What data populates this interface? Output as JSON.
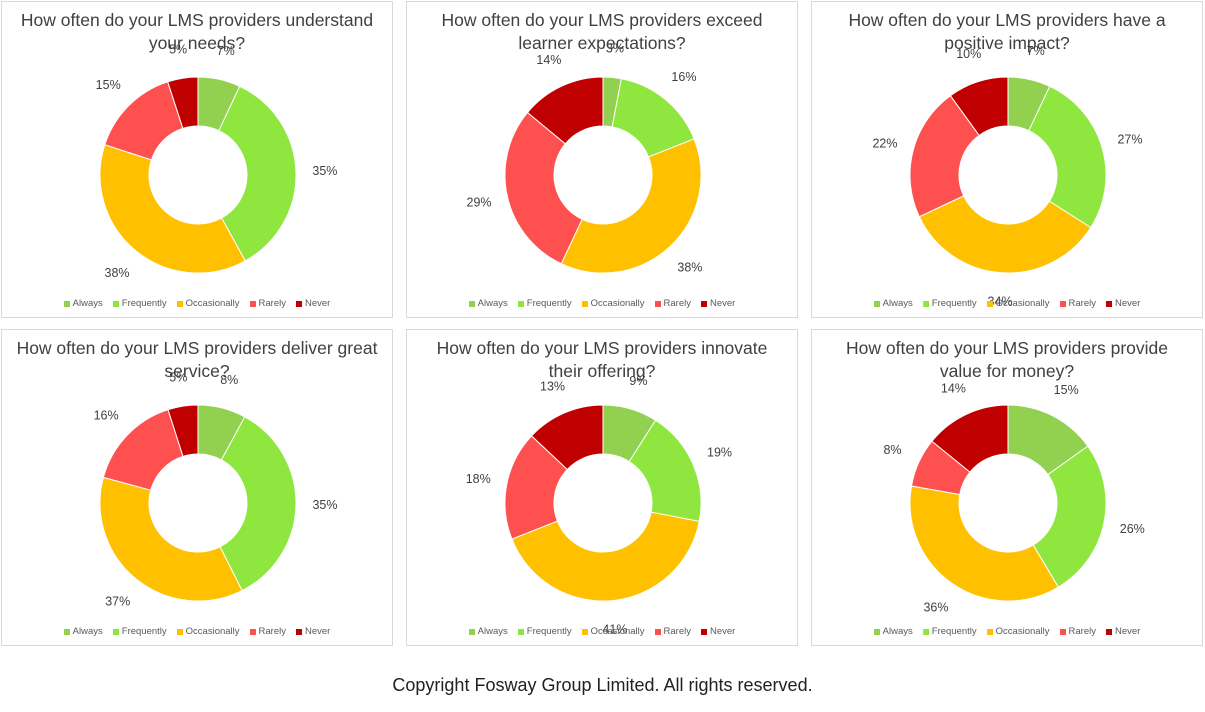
{
  "legend_categories": [
    "Always",
    "Frequently",
    "Occasionally",
    "Rarely",
    "Never"
  ],
  "colors": {
    "Always": "#92d050",
    "Frequently": "#8ee63f",
    "Occasionally": "#ffc000",
    "Rarely": "#ff5050",
    "Never": "#c00000"
  },
  "footer": {
    "copyright": "Copyright Fosway Group Limited. All rights reserved."
  },
  "chart_data": [
    {
      "type": "pie",
      "title": "How often do your LMS providers understand your needs?",
      "categories": [
        "Always",
        "Frequently",
        "Occasionally",
        "Rarely",
        "Never"
      ],
      "values": [
        7,
        35,
        38,
        15,
        5
      ],
      "labels": [
        "7%",
        "35%",
        "38%",
        "15%",
        "5%"
      ],
      "legend": "bottom"
    },
    {
      "type": "pie",
      "title": "How often do your LMS providers exceed learner expectations?",
      "categories": [
        "Always",
        "Frequently",
        "Occasionally",
        "Rarely",
        "Never"
      ],
      "values": [
        3,
        16,
        38,
        29,
        14
      ],
      "labels": [
        "3%",
        "16%",
        "38%",
        "29%",
        "14%"
      ],
      "legend": "bottom"
    },
    {
      "type": "pie",
      "title": "How often do your LMS providers have a positive impact?",
      "categories": [
        "Always",
        "Frequently",
        "Occasionally",
        "Rarely",
        "Never"
      ],
      "values": [
        7,
        27,
        34,
        22,
        10
      ],
      "labels": [
        "7%",
        "27%",
        "34%",
        "22%",
        "10%"
      ],
      "legend": "bottom"
    },
    {
      "type": "pie",
      "title": "How often do your LMS providers deliver great service?",
      "categories": [
        "Always",
        "Frequently",
        "Occasionally",
        "Rarely",
        "Never"
      ],
      "values": [
        8,
        35,
        37,
        16,
        5
      ],
      "labels": [
        "8%",
        "35%",
        "37%",
        "16%",
        "5%"
      ],
      "legend": "bottom"
    },
    {
      "type": "pie",
      "title": "How often do your LMS providers innovate their offering?",
      "categories": [
        "Always",
        "Frequently",
        "Occasionally",
        "Rarely",
        "Never"
      ],
      "values": [
        9,
        19,
        41,
        18,
        13
      ],
      "labels": [
        "9%",
        "19%",
        "41%",
        "18%",
        "13%"
      ],
      "legend": "bottom"
    },
    {
      "type": "pie",
      "title": "How often do your LMS providers provide value for money?",
      "categories": [
        "Always",
        "Frequently",
        "Occasionally",
        "Rarely",
        "Never"
      ],
      "values": [
        15,
        26,
        36,
        8,
        14
      ],
      "labels": [
        "15%",
        "26%",
        "36%",
        "8%",
        "14%"
      ],
      "legend": "bottom"
    }
  ]
}
